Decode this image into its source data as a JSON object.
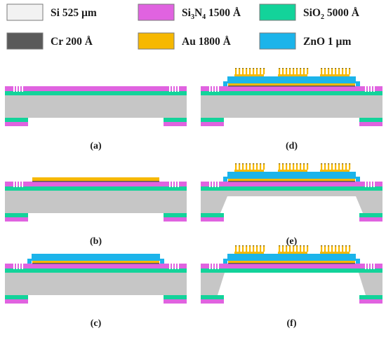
{
  "legend": [
    {
      "key": "si",
      "material": "Si",
      "sub": "",
      "rest": " 525 µm",
      "color": "#f2f2f2"
    },
    {
      "key": "si3n4",
      "material": "Si",
      "sub": "3",
      "mid": "N",
      "sub2": "4",
      "rest": " 1500 Å",
      "color": "#e063e0"
    },
    {
      "key": "sio2",
      "material": "SiO",
      "sub": "2",
      "rest": " 5000 Å",
      "color": "#13d39a"
    },
    {
      "key": "cr",
      "material": "Cr",
      "sub": "",
      "rest": " 200 Å",
      "color": "#5a5a5a"
    },
    {
      "key": "au",
      "material": "Au",
      "sub": "",
      "rest": " 1800 Å",
      "color": "#f6b800"
    },
    {
      "key": "zno",
      "material": "ZnO",
      "sub": "",
      "rest": " 1 µm",
      "color": "#1cb4ea"
    }
  ],
  "panels": [
    {
      "label": "(a)",
      "cavity": false,
      "bottom_au": false,
      "zno": false,
      "top_comb": false
    },
    {
      "label": "(b)",
      "cavity": false,
      "bottom_au": true,
      "zno": false,
      "top_comb": false
    },
    {
      "label": "(c)",
      "cavity": false,
      "bottom_au": true,
      "zno": true,
      "top_comb": false
    },
    {
      "label": "(d)",
      "cavity": false,
      "bottom_au": true,
      "zno": true,
      "top_comb": true
    },
    {
      "label": "(e)",
      "cavity": "partial",
      "bottom_au": true,
      "zno": true,
      "top_comb": true
    },
    {
      "label": "(f)",
      "cavity": "through",
      "bottom_au": true,
      "zno": true,
      "top_comb": true
    }
  ],
  "colors": {
    "substrate": "#c6c6c6",
    "sio2": "#13d39a",
    "si3n4": "#e063e0",
    "au": "#f6b800",
    "cr": "#5a5a5a",
    "zno": "#1cb4ea"
  }
}
